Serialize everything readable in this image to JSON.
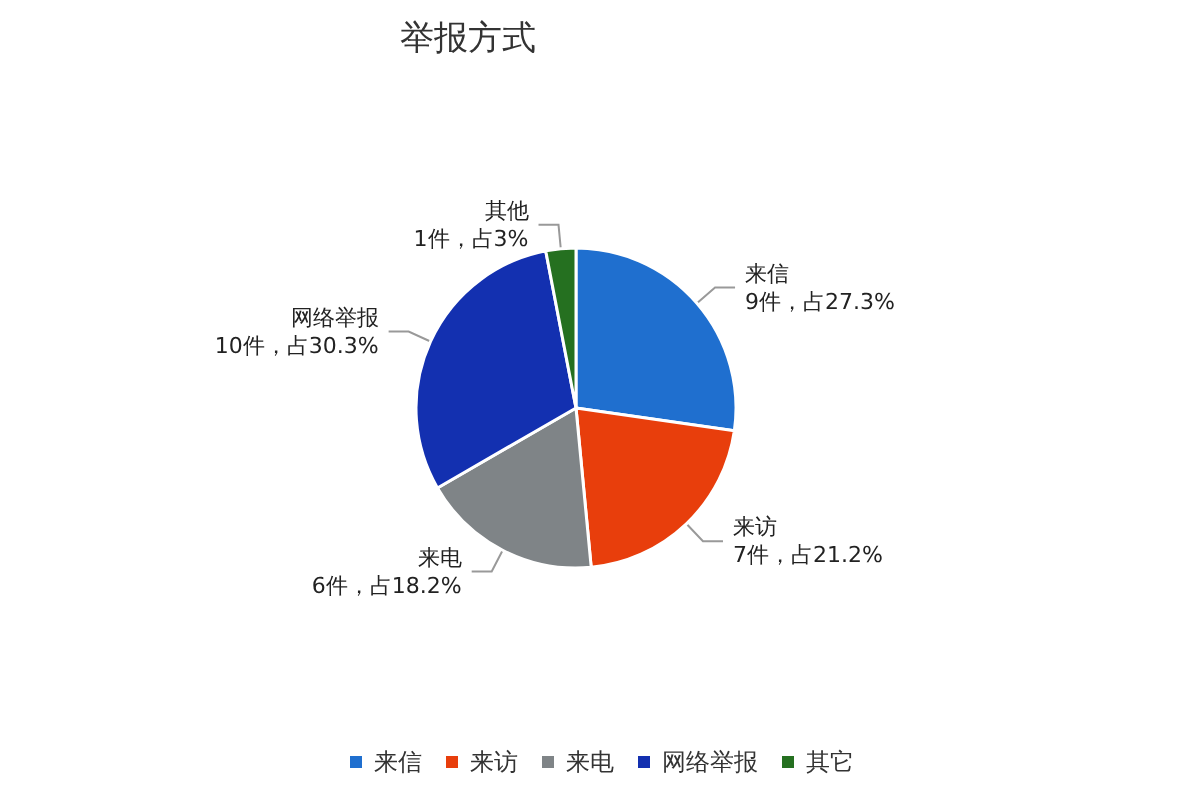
{
  "chart_data": {
    "type": "pie",
    "title": "举报方式",
    "categories": [
      "来信",
      "来访",
      "来电",
      "网络举报",
      "其它"
    ],
    "values": [
      9,
      7,
      6,
      10,
      1
    ],
    "colors": [
      "#1f6fcf",
      "#e83e0c",
      "#7f8487",
      "#1330b0",
      "#257020"
    ],
    "value_labels": [
      "来信\n9件，占27.3%",
      "来访\n7件，占21.2%",
      "来电\n6件，占18.2%",
      "网络举报\n10件，占30.3%",
      "其他\n1件，占3%"
    ],
    "legend": "bottom"
  }
}
